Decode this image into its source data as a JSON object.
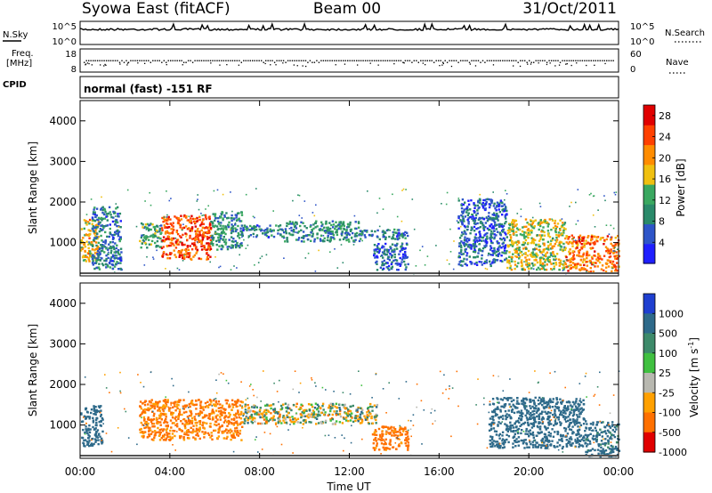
{
  "header": {
    "station": "Syowa East (fitACF)",
    "beam": "Beam 00",
    "date": "31/Oct/2011"
  },
  "noise_panel": {
    "left_label": "N.Sky",
    "right_label": "N.Search",
    "y_ticks": [
      "10^5",
      "10^0"
    ],
    "right_ticks": [
      "10^5",
      "10^0"
    ]
  },
  "freq_panel": {
    "left_label_1": "Freq.",
    "left_label_2": "[MHz]",
    "right_label": "Nave",
    "y_ticks": [
      "18",
      "8"
    ],
    "right_ticks": [
      "60",
      "0"
    ]
  },
  "cpid_panel": {
    "label": "CPID",
    "text": "normal (fast) -151 RF"
  },
  "chart_data": [
    {
      "type": "heatmap",
      "name": "power",
      "ylabel": "Slant Range [km]",
      "ylim": [
        180,
        4500
      ],
      "y_ticks": [
        "1000",
        "2000",
        "3000",
        "4000"
      ],
      "x_ticks": [
        "00:00",
        "04:00",
        "08:00",
        "12:00",
        "16:00",
        "20:00",
        "00:00"
      ],
      "xlim_hours": [
        0,
        24
      ],
      "colorbar": {
        "label": "Power [dB]",
        "ticks": [
          "4",
          "8",
          "12",
          "16",
          "20",
          "24",
          "28"
        ],
        "range": [
          0,
          30
        ],
        "colors": [
          "#1f1fff",
          "#2e55c8",
          "#2a8a6a",
          "#3aa860",
          "#f0c010",
          "#ff8c00",
          "#ff4000",
          "#e00000"
        ]
      },
      "echo_regions": [
        {
          "t0": 0.0,
          "t1": 0.8,
          "r0": 550,
          "r1": 1600,
          "level": 18
        },
        {
          "t0": 0.5,
          "t1": 1.8,
          "r0": 350,
          "r1": 1900,
          "level": 8
        },
        {
          "t0": 2.6,
          "t1": 3.6,
          "r0": 900,
          "r1": 1500,
          "level": 12
        },
        {
          "t0": 3.6,
          "t1": 5.8,
          "r0": 600,
          "r1": 1700,
          "level": 24
        },
        {
          "t0": 5.8,
          "t1": 7.2,
          "r0": 850,
          "r1": 1800,
          "level": 10
        },
        {
          "t0": 7.2,
          "t1": 9.0,
          "r0": 1150,
          "r1": 1450,
          "level": 8
        },
        {
          "t0": 9.0,
          "t1": 12.5,
          "r0": 1050,
          "r1": 1550,
          "level": 10
        },
        {
          "t0": 12.5,
          "t1": 14.6,
          "r0": 1100,
          "r1": 1350,
          "level": 8
        },
        {
          "t0": 13.0,
          "t1": 14.6,
          "r0": 350,
          "r1": 1000,
          "level": 6
        },
        {
          "t0": 16.8,
          "t1": 19.0,
          "r0": 450,
          "r1": 2100,
          "level": 6
        },
        {
          "t0": 19.0,
          "t1": 21.6,
          "r0": 350,
          "r1": 1600,
          "level": 16
        },
        {
          "t0": 21.6,
          "t1": 24.0,
          "r0": 300,
          "r1": 1200,
          "level": 22
        }
      ]
    },
    {
      "type": "heatmap",
      "name": "velocity",
      "ylabel": "Slant Range [km]",
      "ylim": [
        180,
        4500
      ],
      "y_ticks": [
        "1000",
        "2000",
        "3000",
        "4000"
      ],
      "x_ticks": [
        "00:00",
        "04:00",
        "08:00",
        "12:00",
        "16:00",
        "20:00",
        "00:00"
      ],
      "xlabel": "Time UT",
      "xlim_hours": [
        0,
        24
      ],
      "colorbar": {
        "label": "Velocity [m s-1]",
        "label_parts": [
          "Velocity [m s",
          "-1",
          "]"
        ],
        "ticks": [
          "1000",
          "500",
          "100",
          "25",
          "-25",
          "-100",
          "-500",
          "-1000"
        ],
        "colors": [
          "#1f3fd0",
          "#2e6a8a",
          "#3d8a6a",
          "#40c040",
          "#b8b8b0",
          "#ffa000",
          "#ff7000",
          "#e00000"
        ]
      },
      "echo_regions": [
        {
          "t0": 0.0,
          "t1": 1.0,
          "r0": 500,
          "r1": 1500,
          "velocity": 300
        },
        {
          "t0": 2.6,
          "t1": 7.2,
          "r0": 650,
          "r1": 1650,
          "velocity": -150
        },
        {
          "t0": 7.2,
          "t1": 13.2,
          "r0": 1050,
          "r1": 1550,
          "velocity": 0
        },
        {
          "t0": 13.0,
          "t1": 14.6,
          "r0": 400,
          "r1": 1000,
          "velocity": -200
        },
        {
          "t0": 18.2,
          "t1": 22.5,
          "r0": 450,
          "r1": 1700,
          "velocity": 300
        },
        {
          "t0": 22.5,
          "t1": 24.0,
          "r0": 250,
          "r1": 1100,
          "velocity": 200
        }
      ]
    }
  ]
}
